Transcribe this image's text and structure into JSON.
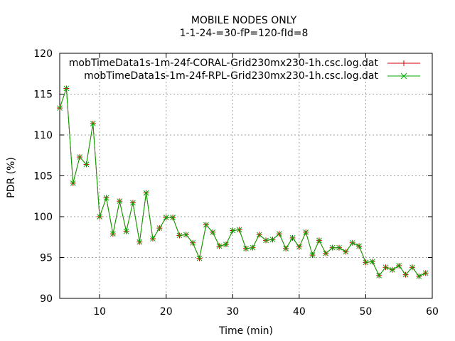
{
  "chart_data": {
    "type": "line",
    "title": "MOBILE NODES ONLY",
    "subtitle": "1-1-24-=30-fP=120-fId=8",
    "xlabel": "Time (min)",
    "ylabel": "PDR (%)",
    "xlim": [
      4,
      60
    ],
    "ylim": [
      90,
      120
    ],
    "x_ticks": [
      10,
      20,
      30,
      40,
      50,
      60
    ],
    "y_ticks": [
      90,
      95,
      100,
      105,
      110,
      115,
      120
    ],
    "grid": true,
    "legend_position": "top-right",
    "x": [
      4,
      5,
      6,
      7,
      8,
      9,
      10,
      11,
      12,
      13,
      14,
      15,
      16,
      17,
      18,
      19,
      20,
      21,
      22,
      23,
      24,
      25,
      26,
      27,
      28,
      29,
      30,
      31,
      32,
      33,
      34,
      35,
      36,
      37,
      38,
      39,
      40,
      41,
      42,
      43,
      44,
      45,
      46,
      47,
      48,
      49,
      50,
      51,
      52,
      53,
      54,
      55,
      56,
      57,
      58,
      59
    ],
    "series": [
      {
        "name": "mobTimeData1s-1m-24f-CORAL-Grid230mx230-1h.csc.log.dat",
        "color": "#cc0000",
        "marker": "plus",
        "values": [
          113.3,
          115.7,
          104.1,
          107.3,
          106.4,
          111.4,
          100.0,
          102.3,
          97.9,
          101.9,
          98.2,
          101.7,
          96.9,
          102.9,
          97.3,
          98.6,
          99.9,
          99.9,
          97.7,
          97.8,
          96.8,
          94.9,
          99.0,
          98.1,
          96.4,
          96.6,
          98.3,
          98.4,
          96.1,
          96.2,
          97.8,
          97.1,
          97.2,
          97.9,
          96.1,
          97.4,
          96.3,
          98.1,
          95.3,
          97.1,
          95.5,
          96.2,
          96.2,
          95.7,
          96.8,
          96.4,
          94.4,
          94.5,
          92.8,
          93.8,
          93.5,
          94.0,
          92.9,
          93.8,
          92.7,
          93.1
        ]
      },
      {
        "name": "mobTimeData1s-1m-24f-RPL-Grid230mx230-1h.csc.log.dat",
        "color": "#00aa00",
        "marker": "cross",
        "values": [
          113.3,
          115.7,
          104.1,
          107.3,
          106.4,
          111.4,
          100.0,
          102.3,
          97.9,
          101.9,
          98.2,
          101.7,
          96.9,
          102.9,
          97.3,
          98.6,
          99.9,
          99.9,
          97.7,
          97.8,
          96.8,
          94.9,
          99.0,
          98.1,
          96.4,
          96.6,
          98.3,
          98.4,
          96.1,
          96.2,
          97.8,
          97.1,
          97.2,
          97.9,
          96.1,
          97.4,
          96.3,
          98.1,
          95.3,
          97.1,
          95.5,
          96.2,
          96.2,
          95.7,
          96.8,
          96.4,
          94.4,
          94.5,
          92.8,
          93.8,
          93.5,
          94.0,
          92.9,
          93.8,
          92.7,
          93.1
        ]
      }
    ]
  }
}
